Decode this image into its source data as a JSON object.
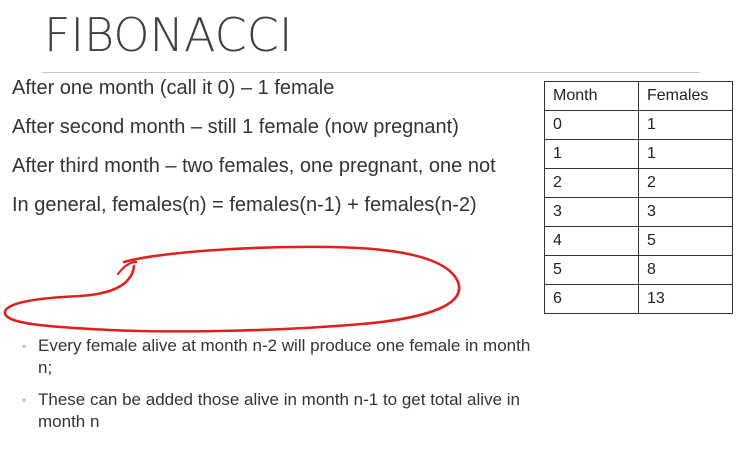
{
  "slide": {
    "title": "FIBONACCI",
    "bullets": [
      "After one month (call it 0) – 1 female",
      "After second month – still 1 female (now pregnant)",
      "After third month – two females, one pregnant, one not",
      "In general, females(n) = females(n-1) + females(n-2)"
    ],
    "sub_bullets": [
      "Every female alive at month n-2 will produce one female in month n;",
      "These can be added those alive in month n-1 to get total alive in month n"
    ],
    "sub_bullet_marker": "◦"
  },
  "table": {
    "headers": [
      "Month",
      "Females"
    ],
    "rows": [
      [
        "0",
        "1"
      ],
      [
        "1",
        "1"
      ],
      [
        "2",
        "2"
      ],
      [
        "3",
        "3"
      ],
      [
        "4",
        "5"
      ],
      [
        "5",
        "8"
      ],
      [
        "6",
        "13"
      ]
    ]
  },
  "annotation": {
    "color": "#e0201b"
  }
}
